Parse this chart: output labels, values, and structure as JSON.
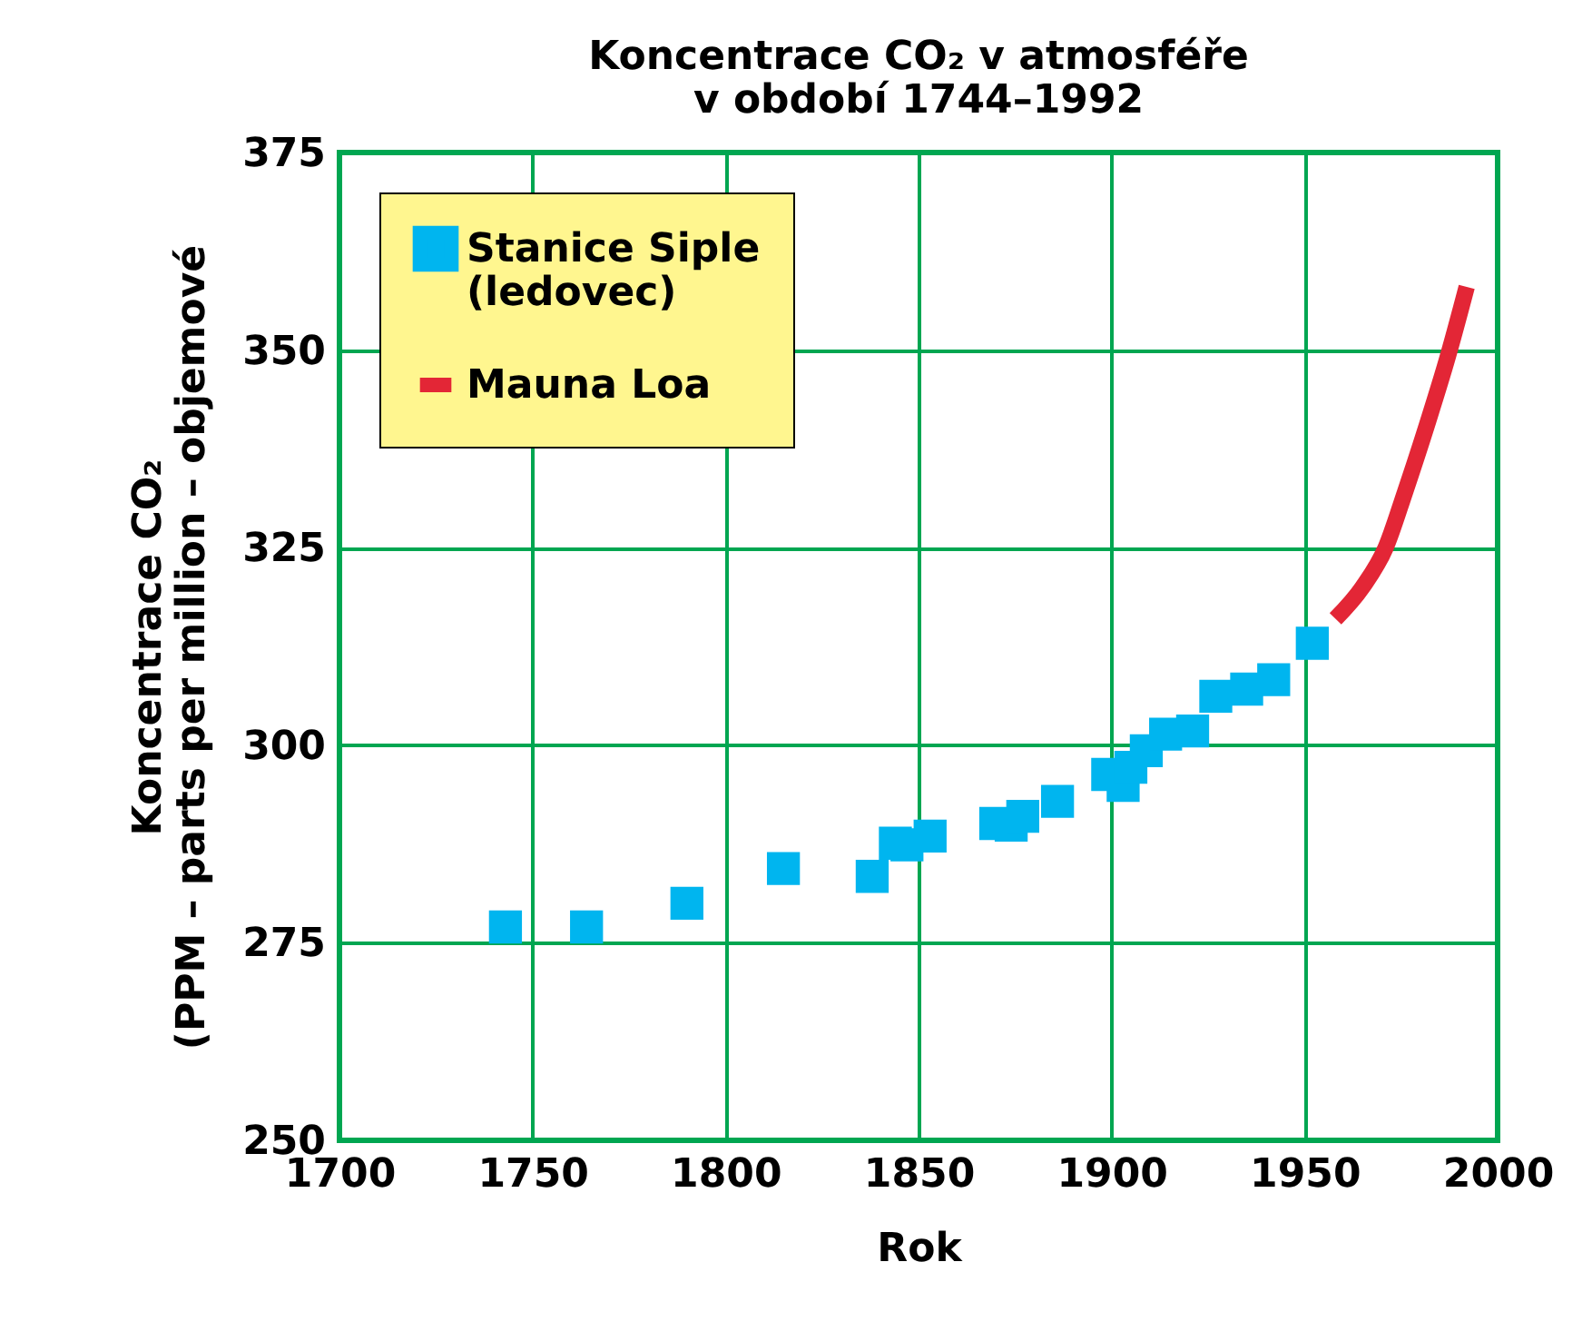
{
  "chart_data": {
    "type": "scatter",
    "title": [
      "Koncentrace CO₂ v atmosféře",
      "v období 1744–1992"
    ],
    "xlabel": "Rok",
    "ylabel": [
      "Koncentrace CO₂",
      "(PPM – parts per million – objemové"
    ],
    "xlim": [
      1700,
      2000
    ],
    "xticks": [
      1700,
      1750,
      1800,
      1850,
      1900,
      1950,
      2000
    ],
    "ylim": [
      250,
      375
    ],
    "yticks": [
      250,
      275,
      300,
      325,
      350,
      375
    ],
    "grid": true,
    "legend": "top left",
    "series": [
      {
        "name": "Stanice Siple (ledovec)",
        "marker": "square",
        "color": "#00b5ef",
        "x": [
          1743,
          1764,
          1790,
          1815,
          1838,
          1844,
          1847,
          1853,
          1870,
          1874,
          1877,
          1886,
          1899,
          1903,
          1905,
          1909,
          1914,
          1921,
          1927,
          1935,
          1942,
          1952
        ],
        "values": [
          277,
          277,
          280,
          284.4,
          283.4,
          287.6,
          287.4,
          288.5,
          290.1,
          289.9,
          291,
          292.9,
          296.3,
          294.9,
          297.2,
          299.3,
          301.4,
          301.8,
          306.2,
          307.1,
          308.3,
          312.9
        ]
      },
      {
        "name": "Mauna Loa",
        "type": "line",
        "color": "#e32636",
        "line_style": "solid",
        "x": [
          1958,
          1965,
          1971,
          1976,
          1982,
          1987,
          1992
        ],
        "values": [
          316,
          320,
          325,
          332,
          341,
          349,
          358
        ]
      }
    ]
  }
}
